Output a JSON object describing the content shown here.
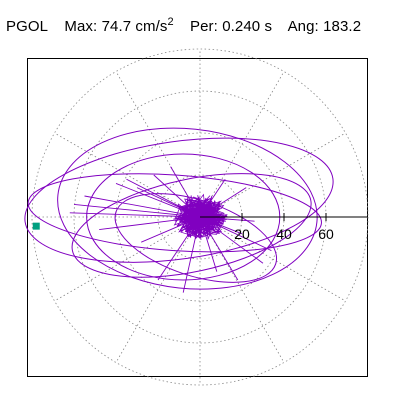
{
  "header": {
    "station": "PGOL",
    "max_label": "Max:",
    "max_value": "74.7 cm/s",
    "max_unit_exponent": "2",
    "per_label": "Per:",
    "per_value": "0.240 s",
    "ang_label": "Ang:",
    "ang_value": "183.2"
  },
  "chart_data": {
    "type": "polar-trace",
    "radial_ticks": [
      20,
      40,
      60
    ],
    "tick_labels": [
      "20",
      "40",
      "60"
    ],
    "rlim": [
      0,
      80
    ],
    "grid": true,
    "grid_rings": [
      20,
      40,
      60,
      80
    ],
    "grid_spoke_step_deg": 30,
    "max_amplitude": 74.7,
    "max_angle_deg": 183.2,
    "colors": {
      "trace": "#8000c0",
      "marker": "#00a080",
      "grid": "#888888",
      "axis": "#000000"
    },
    "trace_loops": [
      {
        "cx": -10,
        "cy": 8,
        "rx": 74,
        "ry": 28,
        "rot": 8
      },
      {
        "cx": -6,
        "cy": 4,
        "rx": 62,
        "ry": 38,
        "rot": -6
      },
      {
        "cx": -12,
        "cy": 2,
        "rx": 70,
        "ry": 18,
        "rot": -4
      },
      {
        "cx": -4,
        "cy": -4,
        "rx": 58,
        "ry": 22,
        "rot": 12
      },
      {
        "cx": -8,
        "cy": 0,
        "rx": 46,
        "ry": 30,
        "rot": 0
      },
      {
        "cx": -2,
        "cy": -10,
        "rx": 40,
        "ry": 18,
        "rot": -18
      }
    ],
    "rays": [
      [
        -40,
        16
      ],
      [
        -55,
        10
      ],
      [
        -60,
        6
      ],
      [
        -35,
        18
      ],
      [
        -30,
        14
      ],
      [
        -48,
        -6
      ],
      [
        -28,
        -12
      ],
      [
        20,
        -8
      ],
      [
        26,
        -2
      ],
      [
        34,
        -16
      ],
      [
        30,
        -22
      ],
      [
        18,
        -30
      ],
      [
        -20,
        -30
      ],
      [
        -8,
        -36
      ],
      [
        -22,
        20
      ],
      [
        -14,
        24
      ],
      [
        12,
        18
      ],
      [
        22,
        14
      ],
      [
        -62,
        2
      ],
      [
        8,
        -26
      ]
    ]
  }
}
